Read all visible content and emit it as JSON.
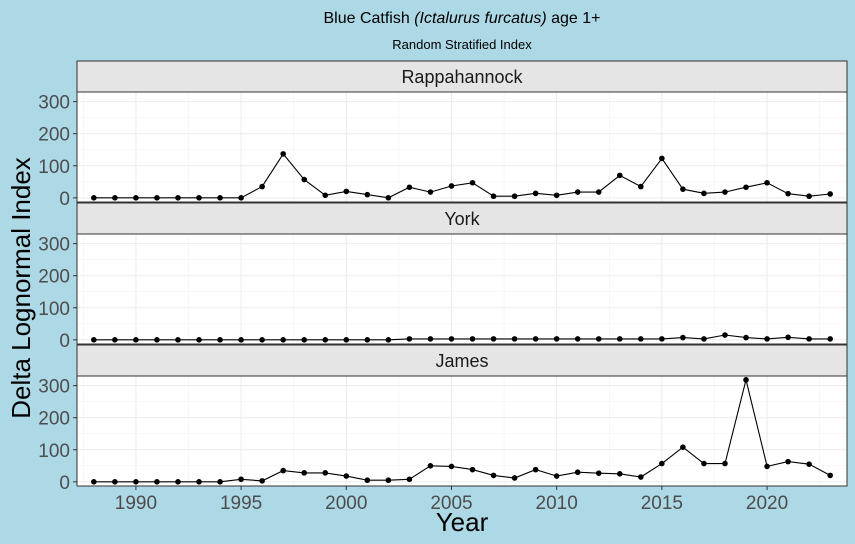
{
  "chart_data": {
    "type": "line",
    "title": {
      "prefix": "Blue Catfish ",
      "italic": "(Ictalurus furcatus)",
      "suffix": " age 1+"
    },
    "subtitle": "Random Stratified Index",
    "xlabel": "Year",
    "ylabel": "Delta Lognormal Index",
    "xlim": [
      1987.2,
      2023.8
    ],
    "ylim": [
      -13,
      330
    ],
    "x_ticks": [
      1990,
      1995,
      2000,
      2005,
      2010,
      2015,
      2020
    ],
    "y_ticks": [
      0,
      100,
      200,
      300
    ],
    "grid": true,
    "x": [
      1988,
      1989,
      1990,
      1991,
      1992,
      1993,
      1994,
      1995,
      1996,
      1997,
      1998,
      1999,
      2000,
      2001,
      2002,
      2003,
      2004,
      2005,
      2006,
      2007,
      2008,
      2009,
      2010,
      2011,
      2012,
      2013,
      2014,
      2015,
      2016,
      2017,
      2018,
      2019,
      2020,
      2021,
      2022,
      2023
    ],
    "facets": [
      {
        "name": "Rappahannock",
        "values": [
          0,
          0,
          0,
          0,
          0,
          0,
          0,
          0,
          35,
          137,
          57,
          8,
          20,
          10,
          0,
          33,
          18,
          37,
          47,
          5,
          5,
          14,
          8,
          18,
          18,
          70,
          35,
          123,
          27,
          14,
          18,
          33,
          47,
          13,
          5,
          12
        ]
      },
      {
        "name": "York",
        "values": [
          0,
          0,
          0,
          0,
          0,
          0,
          0,
          0,
          0,
          0,
          0,
          0,
          0,
          0,
          0,
          3,
          3,
          3,
          3,
          3,
          3,
          3,
          3,
          3,
          3,
          3,
          3,
          3,
          7,
          3,
          15,
          7,
          3,
          8,
          3,
          3
        ]
      },
      {
        "name": "James",
        "values": [
          0,
          0,
          0,
          0,
          0,
          0,
          0,
          8,
          3,
          35,
          28,
          28,
          18,
          5,
          5,
          8,
          50,
          48,
          38,
          20,
          12,
          38,
          18,
          30,
          27,
          25,
          15,
          57,
          108,
          57,
          57,
          318,
          48,
          63,
          55,
          20
        ]
      }
    ]
  }
}
